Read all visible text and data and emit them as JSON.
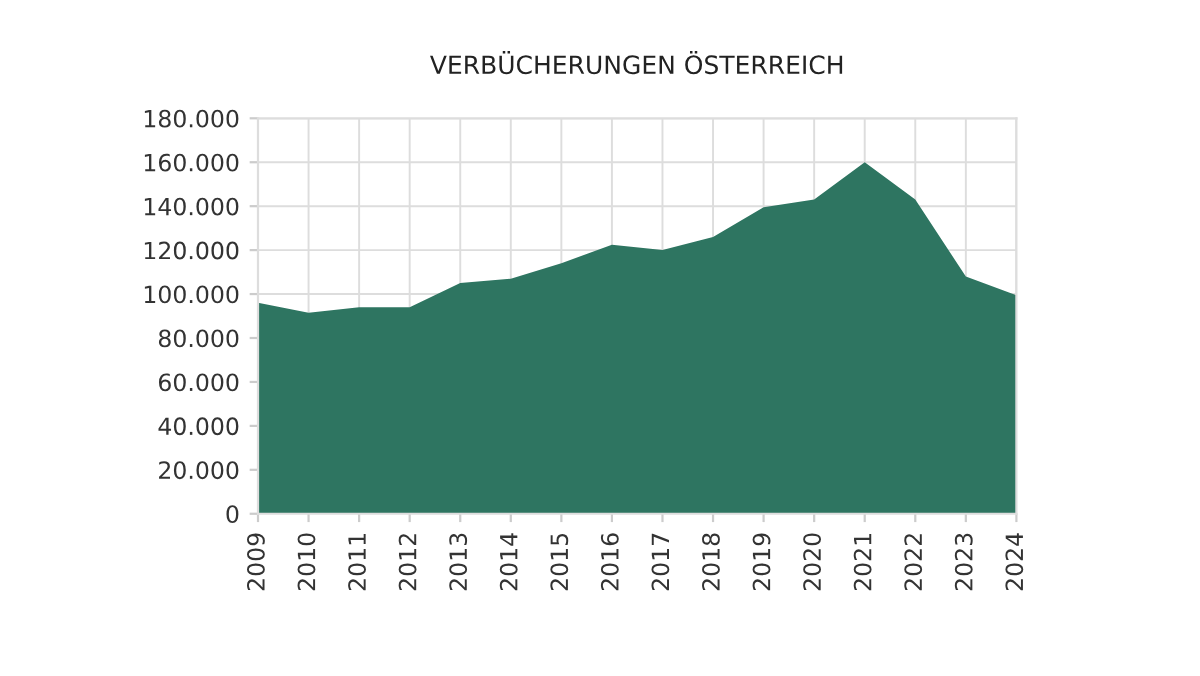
{
  "chart_data": {
    "type": "area",
    "title": "VERBÜCHERUNGEN ÖSTERREICH",
    "categories": [
      "2009",
      "2010",
      "2011",
      "2012",
      "2013",
      "2014",
      "2015",
      "2016",
      "2017",
      "2018",
      "2019",
      "2020",
      "2021",
      "2022",
      "2023",
      "2024"
    ],
    "values": [
      96000,
      91500,
      94000,
      94000,
      105000,
      107000,
      114000,
      122500,
      120000,
      126000,
      139500,
      143000,
      160000,
      143000,
      108000,
      99500
    ],
    "color": "#2e7561",
    "ylim": [
      0,
      180000
    ],
    "yticks": [
      {
        "value": 0,
        "label": "0"
      },
      {
        "value": 20000,
        "label": "20.000"
      },
      {
        "value": 40000,
        "label": "40.000"
      },
      {
        "value": 60000,
        "label": "60.000"
      },
      {
        "value": 80000,
        "label": "80.000"
      },
      {
        "value": 100000,
        "label": "100.000"
      },
      {
        "value": 120000,
        "label": "120.000"
      },
      {
        "value": 140000,
        "label": "140.000"
      },
      {
        "value": 160000,
        "label": "160.000"
      },
      {
        "value": 180000,
        "label": "180.000"
      }
    ],
    "grid": true
  }
}
